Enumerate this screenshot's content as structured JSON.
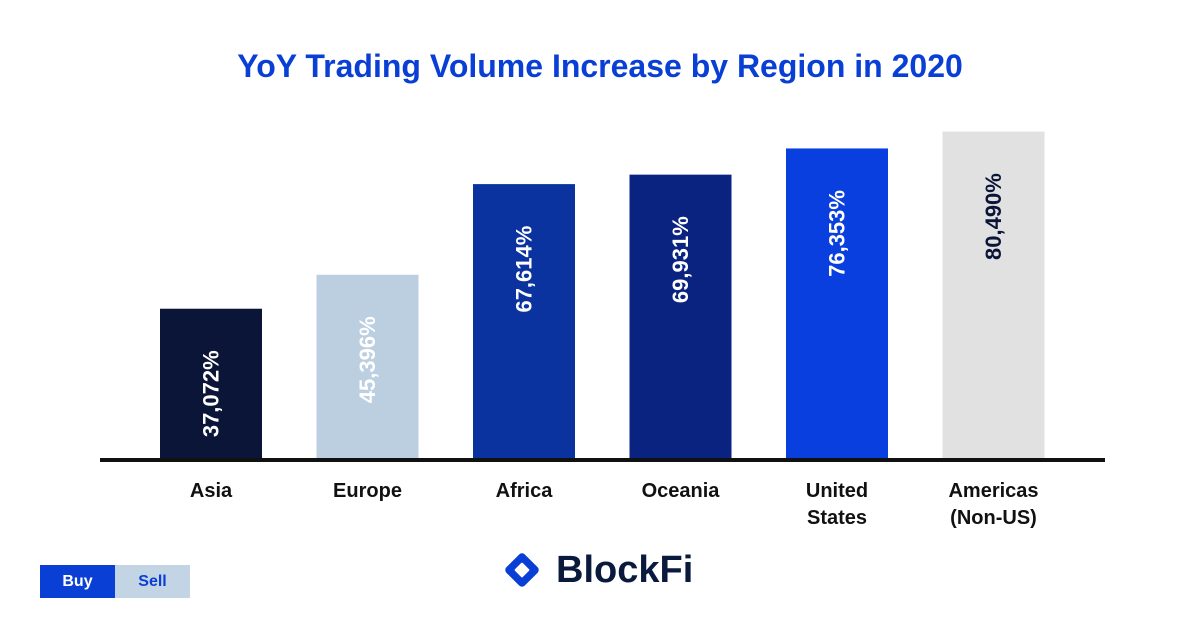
{
  "colors": {
    "title": "#0a3fd6",
    "axis": "#111111",
    "brand": "#0a3fd6",
    "brand_dark": "#0a1a3d"
  },
  "chart_data": {
    "type": "bar",
    "title": "YoY Trading Volume Increase by Region in 2020",
    "xlabel": "",
    "ylabel": "",
    "ylim": [
      0,
      87000
    ],
    "grid": false,
    "categories": [
      [
        "Asia"
      ],
      [
        "Europe"
      ],
      [
        "Africa"
      ],
      [
        "Oceania"
      ],
      [
        "United",
        "States"
      ],
      [
        "Americas",
        "(Non-US)"
      ]
    ],
    "values": [
      37072,
      45396,
      67614,
      69931,
      76353,
      80490
    ],
    "data_labels": [
      "37,072%",
      "45,396%",
      "67,614%",
      "69,931%",
      "76,353%",
      "80,490%"
    ],
    "bar_colors": [
      "#0b1538",
      "#bccfe0",
      "#0b33a0",
      "#0a2380",
      "#0a3fdf",
      "#e1e1e1"
    ],
    "label_colors": [
      "#ffffff",
      "#ffffff",
      "#ffffff",
      "#ffffff",
      "#ffffff",
      "#0b1538"
    ]
  },
  "toggle": {
    "buy_label": "Buy",
    "sell_label": "Sell"
  },
  "logo": {
    "text": "BlockFi",
    "icon": "blockfi-diamond-icon"
  }
}
